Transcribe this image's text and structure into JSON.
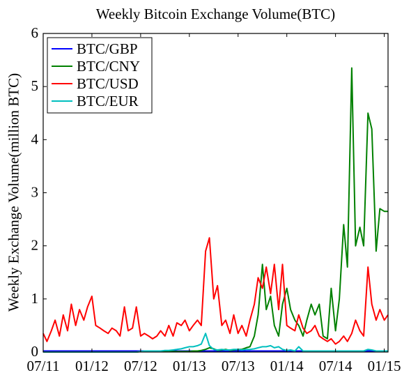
{
  "chart_data": {
    "type": "line",
    "title": "Weekly Bitcoin Exchange Volume(BTC)",
    "xlabel": "",
    "ylabel": "Weekly Exchange Volume(million BTC)",
    "ylim": [
      0,
      6
    ],
    "xlim": [
      "2011-07-01",
      "2015-01-15"
    ],
    "yticks": [
      "0",
      "1",
      "2",
      "3",
      "4",
      "5",
      "6"
    ],
    "xticks": [
      {
        "date": "2011-07-01",
        "label": "07/11"
      },
      {
        "date": "2012-01-01",
        "label": "01/12"
      },
      {
        "date": "2012-07-01",
        "label": "07/12"
      },
      {
        "date": "2013-01-01",
        "label": "01/13"
      },
      {
        "date": "2013-07-01",
        "label": "07/13"
      },
      {
        "date": "2014-01-01",
        "label": "01/14"
      },
      {
        "date": "2014-07-01",
        "label": "07/14"
      },
      {
        "date": "2015-01-01",
        "label": "01/15"
      }
    ],
    "legend_position": "top-left",
    "grid": false,
    "x": [
      "2011-07-01",
      "2011-07-15",
      "2011-08-01",
      "2011-08-15",
      "2011-09-01",
      "2011-09-15",
      "2011-10-01",
      "2011-10-15",
      "2011-11-01",
      "2011-11-15",
      "2011-12-01",
      "2011-12-15",
      "2012-01-01",
      "2012-01-15",
      "2012-02-01",
      "2012-02-15",
      "2012-03-01",
      "2012-03-15",
      "2012-04-01",
      "2012-04-15",
      "2012-05-01",
      "2012-05-15",
      "2012-06-01",
      "2012-06-15",
      "2012-07-01",
      "2012-07-15",
      "2012-08-01",
      "2012-08-15",
      "2012-09-01",
      "2012-09-15",
      "2012-10-01",
      "2012-10-15",
      "2012-11-01",
      "2012-11-15",
      "2012-12-01",
      "2012-12-15",
      "2013-01-01",
      "2013-01-15",
      "2013-02-01",
      "2013-02-15",
      "2013-03-01",
      "2013-03-15",
      "2013-04-01",
      "2013-04-15",
      "2013-05-01",
      "2013-05-15",
      "2013-06-01",
      "2013-06-15",
      "2013-07-01",
      "2013-07-15",
      "2013-08-01",
      "2013-08-15",
      "2013-09-01",
      "2013-09-15",
      "2013-10-01",
      "2013-10-15",
      "2013-11-01",
      "2013-11-15",
      "2013-12-01",
      "2013-12-15",
      "2014-01-01",
      "2014-01-15",
      "2014-02-01",
      "2014-02-15",
      "2014-03-01",
      "2014-03-15",
      "2014-04-01",
      "2014-04-15",
      "2014-05-01",
      "2014-05-15",
      "2014-06-01",
      "2014-06-15",
      "2014-07-01",
      "2014-07-15",
      "2014-08-01",
      "2014-08-15",
      "2014-09-01",
      "2014-09-15",
      "2014-10-01",
      "2014-10-15",
      "2014-11-01",
      "2014-11-15",
      "2014-12-01",
      "2014-12-15",
      "2015-01-01",
      "2015-01-15"
    ],
    "series": [
      {
        "name": "BTC/GBP",
        "color": "#0000ff",
        "values": [
          0.02,
          0.02,
          0.02,
          0.02,
          0.02,
          0.02,
          0.02,
          0.02,
          0.02,
          0.02,
          0.02,
          0.02,
          0.02,
          0.02,
          0.02,
          0.02,
          0.02,
          0.02,
          0.02,
          0.02,
          0.02,
          0.02,
          0.02,
          0.02,
          0.02,
          0.02,
          0.02,
          0.02,
          0.02,
          0.02,
          0.02,
          0.02,
          0.02,
          0.02,
          0.02,
          0.02,
          0.02,
          0.02,
          0.02,
          0.02,
          0.02,
          0.02,
          0.02,
          0.02,
          0.02,
          0.02,
          0.02,
          0.02,
          0.02,
          0.02,
          0.02,
          0.02,
          0.02,
          0.02,
          0.02,
          0.02,
          0.02,
          0.02,
          0.02,
          0.02,
          0.02,
          0.02,
          0.02,
          0.02,
          0.02,
          0.02,
          0.02,
          0.02,
          0.02,
          0.02,
          0.02,
          0.02,
          0.02,
          0.02,
          0.02,
          0.02,
          0.02,
          0.02,
          0.02,
          0.02,
          0.02,
          0.02,
          0.02,
          0.02,
          0.02,
          0.02
        ]
      },
      {
        "name": "BTC/CNY",
        "color": "#008000",
        "values": [
          0,
          0,
          0,
          0,
          0,
          0,
          0,
          0,
          0,
          0,
          0,
          0,
          0,
          0,
          0,
          0,
          0,
          0,
          0,
          0,
          0,
          0,
          0,
          0,
          0.01,
          0.01,
          0.01,
          0.01,
          0.01,
          0.01,
          0.01,
          0.01,
          0.01,
          0.01,
          0.01,
          0.01,
          0.01,
          0.02,
          0.02,
          0.03,
          0.05,
          0.08,
          0.06,
          0.03,
          0.04,
          0.05,
          0.03,
          0.04,
          0.05,
          0.05,
          0.08,
          0.1,
          0.3,
          0.7,
          1.65,
          0.8,
          1.05,
          0.5,
          0.3,
          0.9,
          1.2,
          0.8,
          0.6,
          0.5,
          0.3,
          0.6,
          0.9,
          0.7,
          0.9,
          0.3,
          0.25,
          1.2,
          0.4,
          1.0,
          2.4,
          1.6,
          5.35,
          2.0,
          2.35,
          2.0,
          4.5,
          4.2,
          1.9,
          2.7,
          2.65,
          2.65
        ]
      },
      {
        "name": "BTC/USD",
        "color": "#ff0000",
        "values": [
          0.35,
          0.2,
          0.4,
          0.6,
          0.3,
          0.7,
          0.4,
          0.9,
          0.5,
          0.8,
          0.6,
          0.85,
          1.05,
          0.5,
          0.45,
          0.4,
          0.35,
          0.45,
          0.4,
          0.3,
          0.85,
          0.4,
          0.45,
          0.85,
          0.3,
          0.35,
          0.3,
          0.25,
          0.3,
          0.4,
          0.3,
          0.5,
          0.3,
          0.55,
          0.5,
          0.6,
          0.4,
          0.5,
          0.6,
          0.5,
          1.9,
          2.15,
          1.0,
          1.25,
          0.5,
          0.6,
          0.35,
          0.7,
          0.35,
          0.5,
          0.3,
          0.6,
          0.9,
          1.4,
          1.2,
          1.6,
          1.1,
          1.65,
          0.8,
          1.65,
          0.5,
          0.45,
          0.4,
          0.7,
          0.45,
          0.35,
          0.4,
          0.5,
          0.3,
          0.25,
          0.2,
          0.25,
          0.15,
          0.2,
          0.3,
          0.2,
          0.35,
          0.6,
          0.4,
          0.3,
          1.6,
          0.9,
          0.6,
          0.8,
          0.6,
          0.7
        ]
      },
      {
        "name": "BTC/EUR",
        "color": "#00bfbf",
        "values": [
          0,
          0,
          0,
          0,
          0,
          0,
          0,
          0,
          0,
          0,
          0,
          0,
          0,
          0,
          0,
          0,
          0,
          0,
          0,
          0,
          0,
          0,
          0,
          0,
          0.01,
          0.02,
          0.02,
          0.02,
          0.02,
          0.02,
          0.03,
          0.03,
          0.04,
          0.05,
          0.06,
          0.08,
          0.1,
          0.1,
          0.12,
          0.15,
          0.35,
          0.12,
          0.05,
          0.04,
          0.05,
          0.04,
          0.04,
          0.05,
          0.05,
          0.04,
          0.05,
          0.05,
          0.06,
          0.08,
          0.1,
          0.1,
          0.12,
          0.08,
          0.1,
          0.05,
          0.03,
          0.04,
          0.02,
          0.1,
          0.02,
          0.02,
          0.02,
          0.02,
          0.02,
          0.02,
          0.02,
          0.02,
          0.02,
          0.02,
          0.02,
          0.02,
          0.02,
          0.02,
          0.02,
          0.02,
          0.05,
          0.04,
          0.02,
          0.02,
          0.02,
          0.02
        ]
      }
    ]
  }
}
